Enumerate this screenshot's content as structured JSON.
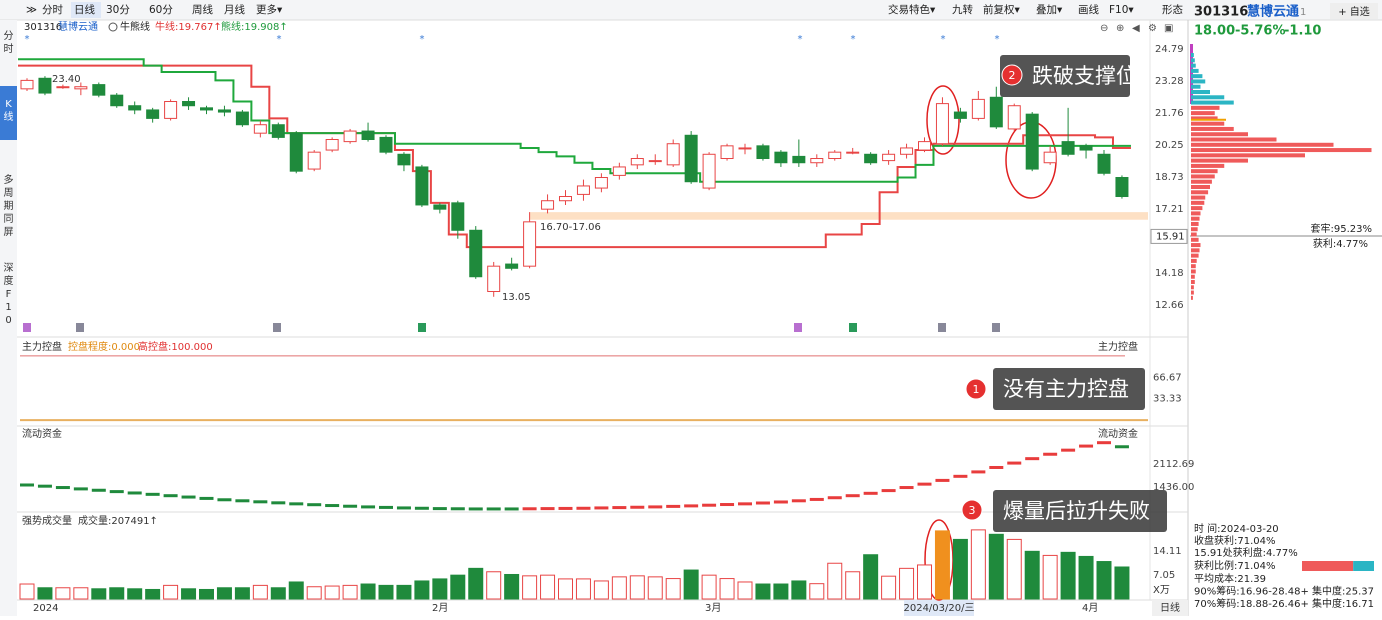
{
  "toolbar": {
    "left": [
      "分时",
      "日线",
      "30分",
      "60分",
      "周线",
      "月线",
      "更多▾"
    ],
    "right": [
      "交易特色▾",
      "九转",
      "前复权▾",
      "叠加▾",
      "画线",
      "F10▾",
      "形态"
    ]
  },
  "sidebar": [
    "分时",
    "K线",
    "多周期同屏",
    "深度F10"
  ],
  "chart": {
    "code": "301316",
    "name": "慧博云通",
    "indicator": "牛熊线",
    "bull_label": "牛线:19.767↑",
    "bear_label": "熊线:19.908↑",
    "ylim": [
      11.24,
      25.45
    ],
    "yticks": [
      12.66,
      14.18,
      17.21,
      18.73,
      20.25,
      21.76,
      23.28,
      24.79
    ],
    "current": 15.91,
    "annotations": [
      "23.40",
      "13.05",
      "16.70-17.06"
    ],
    "support": [
      16.7,
      17.06
    ],
    "up_color": "#e84545",
    "down_color": "#1f8a3c",
    "candles": [
      [
        22.9,
        23.3,
        23.4,
        22.8
      ],
      [
        23.4,
        22.7,
        23.5,
        22.6
      ],
      [
        23.0,
        23.0,
        23.1,
        22.9
      ],
      [
        22.9,
        23.0,
        23.2,
        22.6
      ],
      [
        23.1,
        22.6,
        23.2,
        22.5
      ],
      [
        22.6,
        22.1,
        22.7,
        22.0
      ],
      [
        22.1,
        21.9,
        22.3,
        21.7
      ],
      [
        21.9,
        21.5,
        22.0,
        21.3
      ],
      [
        21.5,
        22.3,
        22.4,
        21.4
      ],
      [
        22.3,
        22.1,
        22.5,
        21.9
      ],
      [
        22.0,
        21.9,
        22.1,
        21.7
      ],
      [
        21.9,
        21.8,
        22.1,
        21.6
      ],
      [
        21.8,
        21.2,
        21.9,
        21.1
      ],
      [
        20.8,
        21.2,
        21.4,
        20.6
      ],
      [
        21.2,
        20.6,
        21.3,
        20.5
      ],
      [
        20.8,
        19.0,
        20.9,
        18.9
      ],
      [
        19.1,
        19.9,
        20.0,
        19.0
      ],
      [
        20.0,
        20.5,
        20.6,
        19.9
      ],
      [
        20.4,
        20.9,
        21.0,
        20.3
      ],
      [
        20.9,
        20.5,
        21.3,
        20.4
      ],
      [
        20.6,
        19.9,
        20.7,
        19.8
      ],
      [
        19.8,
        19.3,
        19.9,
        19.0
      ],
      [
        19.2,
        17.4,
        19.3,
        17.3
      ],
      [
        17.4,
        17.2,
        17.5,
        17.0
      ],
      [
        17.5,
        16.2,
        17.6,
        15.8
      ],
      [
        16.2,
        14.0,
        16.4,
        13.9
      ],
      [
        13.3,
        14.5,
        14.7,
        13.05
      ],
      [
        14.6,
        14.4,
        14.9,
        14.3
      ],
      [
        14.5,
        16.6,
        17.06,
        14.4
      ],
      [
        17.2,
        17.6,
        17.9,
        17.0
      ],
      [
        17.6,
        17.8,
        18.1,
        17.4
      ],
      [
        17.9,
        18.3,
        18.6,
        17.6
      ],
      [
        18.2,
        18.7,
        18.9,
        18.0
      ],
      [
        18.8,
        19.2,
        19.4,
        18.6
      ],
      [
        19.3,
        19.6,
        19.8,
        19.1
      ],
      [
        19.5,
        19.5,
        19.8,
        19.3
      ],
      [
        19.3,
        20.3,
        20.5,
        19.2
      ],
      [
        20.7,
        18.5,
        20.9,
        18.4
      ],
      [
        18.2,
        19.8,
        19.9,
        18.1
      ],
      [
        19.6,
        20.2,
        20.3,
        19.5
      ],
      [
        20.1,
        20.1,
        20.3,
        19.8
      ],
      [
        20.2,
        19.6,
        20.3,
        19.5
      ],
      [
        19.9,
        19.4,
        20.0,
        19.2
      ],
      [
        19.7,
        19.4,
        20.5,
        19.2
      ],
      [
        19.4,
        19.6,
        19.8,
        19.2
      ],
      [
        19.6,
        19.9,
        20.0,
        19.5
      ],
      [
        19.9,
        19.9,
        20.1,
        19.8
      ],
      [
        19.8,
        19.4,
        19.9,
        19.3
      ],
      [
        19.5,
        19.8,
        20.0,
        19.3
      ],
      [
        19.8,
        20.1,
        20.3,
        19.6
      ],
      [
        20.0,
        20.4,
        20.6,
        19.9
      ],
      [
        20.3,
        22.2,
        22.5,
        20.2
      ],
      [
        21.8,
        21.5,
        22.0,
        21.3
      ],
      [
        21.5,
        22.4,
        22.8,
        21.4
      ],
      [
        22.5,
        21.1,
        23.0,
        21.0
      ],
      [
        21.0,
        22.1,
        22.2,
        20.9
      ],
      [
        21.7,
        19.1,
        21.8,
        19.0
      ],
      [
        19.4,
        19.9,
        20.2,
        19.3
      ],
      [
        20.4,
        19.8,
        22.0,
        19.7
      ],
      [
        20.2,
        20.0,
        20.3,
        19.6
      ],
      [
        19.8,
        18.9,
        20.0,
        18.8
      ],
      [
        18.7,
        17.8,
        18.8,
        17.7
      ]
    ],
    "bull_line": [
      24.0,
      24.0,
      24.0,
      24.0,
      24.0,
      24.0,
      24.0,
      24.0,
      24.0,
      24.0,
      24.0,
      24.0,
      24.0,
      23.0,
      21.5,
      20.8,
      20.8,
      20.8,
      20.8,
      20.8,
      20.8,
      20.0,
      19.0,
      17.5,
      16.0,
      15.4,
      15.4,
      15.4,
      15.4,
      15.4,
      15.4,
      15.4,
      15.4,
      15.4,
      15.4,
      15.4,
      15.4,
      15.4,
      15.4,
      15.4,
      15.4,
      15.4,
      15.4,
      15.4,
      15.4,
      16.0,
      16.0,
      16.5,
      18.0,
      19.2,
      20.0,
      20.3,
      20.3,
      20.3,
      20.3,
      20.3,
      20.7,
      20.7,
      20.7,
      20.7,
      20.6,
      20.1
    ],
    "bear_line": [
      24.3,
      24.3,
      24.3,
      24.3,
      24.3,
      24.3,
      24.3,
      24.0,
      23.7,
      23.7,
      23.7,
      23.3,
      22.3,
      21.4,
      20.8,
      20.8,
      20.8,
      20.8,
      20.8,
      20.8,
      20.8,
      20.3,
      20.3,
      20.3,
      20.3,
      20.3,
      20.3,
      20.3,
      20.1,
      19.9,
      19.7,
      19.4,
      19.1,
      18.9,
      18.9,
      18.9,
      18.9,
      18.9,
      18.5,
      18.5,
      18.5,
      18.5,
      18.5,
      18.5,
      18.5,
      18.5,
      18.5,
      18.5,
      18.5,
      18.7,
      19.3,
      20.2,
      20.2,
      20.2,
      20.2,
      20.2,
      20.2,
      20.2,
      20.2,
      20.2,
      20.2,
      20.2
    ]
  },
  "control": {
    "title": "主力控盘",
    "degree_label": "控盘程度:0.000",
    "high_label": "高控盘:100.000",
    "right_label": "主力控盘",
    "ylim": [
      -3,
      106
    ],
    "yticks": [
      33.33,
      66.67
    ],
    "degree": 0,
    "high": 100
  },
  "flow": {
    "title": "流动资金",
    "right_label": "流动资金",
    "ylim": [
      759,
      2819
    ],
    "yticks": [
      {
        "value": 1436,
        "label": "1436.00"
      },
      2112.69
    ],
    "values": [
      1495,
      1460,
      1420,
      1380,
      1340,
      1300,
      1260,
      1220,
      1180,
      1140,
      1100,
      1060,
      1030,
      1000,
      970,
      940,
      915,
      890,
      870,
      850,
      835,
      820,
      810,
      800,
      795,
      790,
      790,
      790,
      795,
      800,
      805,
      810,
      820,
      830,
      840,
      850,
      865,
      880,
      900,
      920,
      940,
      965,
      995,
      1030,
      1070,
      1120,
      1180,
      1250,
      1330,
      1420,
      1520,
      1630,
      1750,
      1880,
      2010,
      2140,
      2270,
      2400,
      2520,
      2640,
      2740,
      2620
    ]
  },
  "volume": {
    "title": "强势成交量",
    "volume_label": "成交量:207491↑",
    "unit": "X万",
    "ylim": [
      0,
      23.2
    ],
    "yticks": [
      7.05,
      14.11
    ],
    "selected": 51,
    "selected_color": "#f0901e",
    "values": [
      4.4,
      3.3,
      3.3,
      3.3,
      3.0,
      3.3,
      3.0,
      2.8,
      4.0,
      3.0,
      2.8,
      3.3,
      3.3,
      4.0,
      3.3,
      5.0,
      3.6,
      3.8,
      4.0,
      4.4,
      4.0,
      4.0,
      5.3,
      5.9,
      7.0,
      9.0,
      8.0,
      7.2,
      6.8,
      7.0,
      5.9,
      5.9,
      5.3,
      6.5,
      6.8,
      6.5,
      6.0,
      8.5,
      7.0,
      6.0,
      5.0,
      4.4,
      4.4,
      5.3,
      4.5,
      10.5,
      8.0,
      13.0,
      6.7,
      9.0,
      10.0,
      20.0,
      17.5,
      20.3,
      19.0,
      17.5,
      14.0,
      12.8,
      13.7,
      12.5,
      11.0,
      9.4
    ]
  },
  "xaxis": {
    "labels": [
      "2024",
      "2月",
      "3月",
      "4月"
    ],
    "selected_date": "2024/03/20/三",
    "period": "日线"
  },
  "callouts": [
    {
      "number": "1",
      "text": "没有主力控盘"
    },
    {
      "number": "2",
      "text": "跌破支撑位"
    },
    {
      "number": "3",
      "text": "爆量后拉升失败"
    }
  ],
  "side": {
    "code": "301316",
    "name": "慧博云通",
    "badge": "1",
    "watch": "+ 自选",
    "price": "18.00",
    "change_pct": "-5.76%",
    "change": "-1.10",
    "trapped_label": "套牢:95.23%",
    "profit_label": "获利:4.77%",
    "chips": {
      "xlim": [
        0,
        200
      ],
      "trapped_color": "#2bb5c4",
      "profit_color": "#ef5a5a",
      "prices": [
        24.5,
        24.25,
        24.0,
        23.75,
        23.5,
        23.25,
        23.0,
        22.75,
        22.5,
        22.25,
        22.0,
        21.75,
        21.5,
        21.25,
        21.0,
        20.75,
        20.5,
        20.25,
        20.0,
        19.75,
        19.5,
        19.25,
        19.0,
        18.75,
        18.5,
        18.25,
        18.0,
        17.75,
        17.5,
        17.25,
        17.0,
        16.75,
        16.5,
        16.25,
        16.0,
        15.75,
        15.5,
        15.25,
        15.0,
        14.75,
        14.5,
        14.25,
        14.0,
        13.75,
        13.5,
        13.25,
        13.0
      ],
      "trapped": [
        3,
        4,
        5,
        8,
        12,
        15,
        10,
        20,
        35,
        45,
        null,
        null,
        null,
        null,
        null,
        null,
        null,
        null,
        null,
        null,
        null,
        null,
        null,
        null,
        null,
        null,
        null,
        null,
        null,
        null,
        null,
        null,
        null,
        null,
        null,
        null,
        null,
        null,
        null,
        null,
        null,
        null,
        null,
        null,
        null,
        null,
        null
      ],
      "profit": [
        null,
        null,
        null,
        null,
        null,
        null,
        null,
        null,
        null,
        null,
        30,
        25,
        28,
        35,
        45,
        60,
        90,
        150,
        190,
        120,
        60,
        35,
        28,
        25,
        22,
        20,
        18,
        15,
        14,
        12,
        10,
        9,
        8,
        7,
        6,
        8,
        10,
        9,
        8,
        6,
        5,
        5,
        4,
        4,
        3,
        3,
        2
      ]
    },
    "info": [
      "时    间:2024-03-20",
      "收盘获利:71.04%",
      "15.91处获利盘:4.77%"
    ],
    "ratio": {
      "label": "获利比例:71.04%",
      "value": 71.04
    },
    "info2": [
      "平均成本:21.39",
      "90%筹码:16.96-28.48+ 集中度:25.37",
      "70%筹码:18.88-26.46+ 集中度:16.71"
    ]
  }
}
